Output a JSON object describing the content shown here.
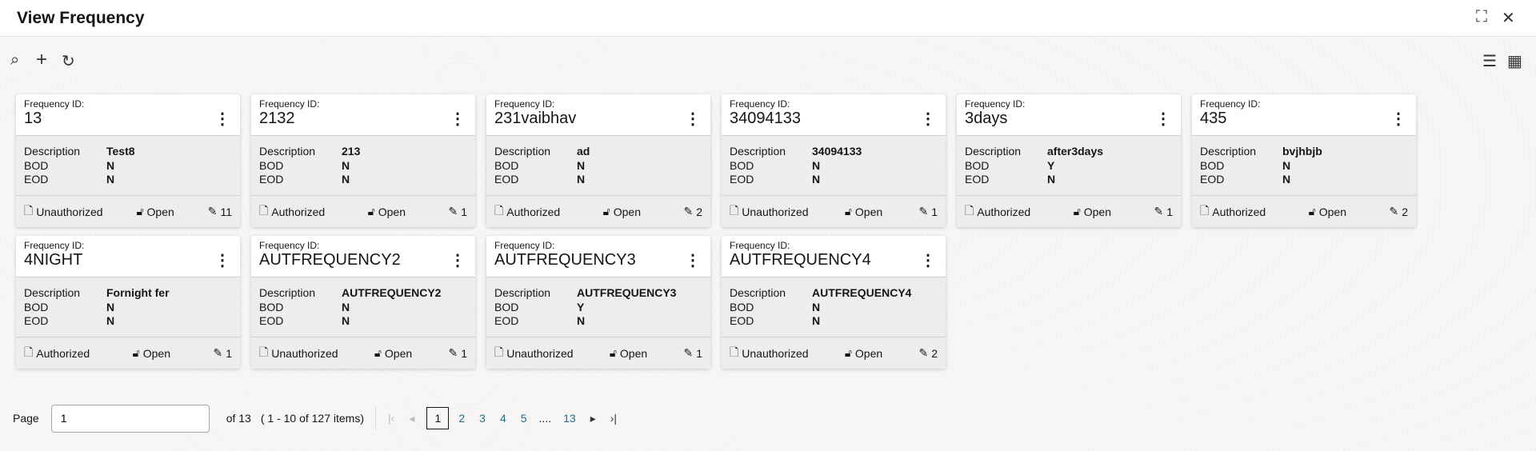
{
  "title": "View Frequency",
  "card_label": "Frequency ID:",
  "fields": {
    "description": "Description",
    "bod": "BOD",
    "eod": "EOD"
  },
  "cards": [
    {
      "id": "13",
      "description": "Test8",
      "bod": "N",
      "eod": "N",
      "status": "Unauthorized",
      "lock": "Open",
      "mods": "11"
    },
    {
      "id": "2132",
      "description": "213",
      "bod": "N",
      "eod": "N",
      "status": "Authorized",
      "lock": "Open",
      "mods": "1"
    },
    {
      "id": "231vaibhav",
      "description": "ad",
      "bod": "N",
      "eod": "N",
      "status": "Authorized",
      "lock": "Open",
      "mods": "2"
    },
    {
      "id": "34094133",
      "description": "34094133",
      "bod": "N",
      "eod": "N",
      "status": "Unauthorized",
      "lock": "Open",
      "mods": "1"
    },
    {
      "id": "3days",
      "description": "after3days",
      "bod": "Y",
      "eod": "N",
      "status": "Authorized",
      "lock": "Open",
      "mods": "1"
    },
    {
      "id": "435",
      "description": "bvjhbjb",
      "bod": "N",
      "eod": "N",
      "status": "Authorized",
      "lock": "Open",
      "mods": "2"
    },
    {
      "id": "4NIGHT",
      "description": "Fornight fer",
      "bod": "N",
      "eod": "N",
      "status": "Authorized",
      "lock": "Open",
      "mods": "1"
    },
    {
      "id": "AUTFREQUENCY2",
      "description": "AUTFREQUENCY2",
      "bod": "N",
      "eod": "N",
      "status": "Unauthorized",
      "lock": "Open",
      "mods": "1"
    },
    {
      "id": "AUTFREQUENCY3",
      "description": "AUTFREQUENCY3",
      "bod": "Y",
      "eod": "N",
      "status": "Unauthorized",
      "lock": "Open",
      "mods": "1"
    },
    {
      "id": "AUTFREQUENCY4",
      "description": "AUTFREQUENCY4",
      "bod": "N",
      "eod": "N",
      "status": "Unauthorized",
      "lock": "Open",
      "mods": "2"
    }
  ],
  "pagination": {
    "page_label": "Page",
    "page_value": "1",
    "of_label": "of 13",
    "items_label": "( 1 - 10 of 127 items)",
    "current": "1",
    "pages": [
      "2",
      "3",
      "4",
      "5"
    ],
    "ellipsis": "....",
    "last": "13"
  }
}
